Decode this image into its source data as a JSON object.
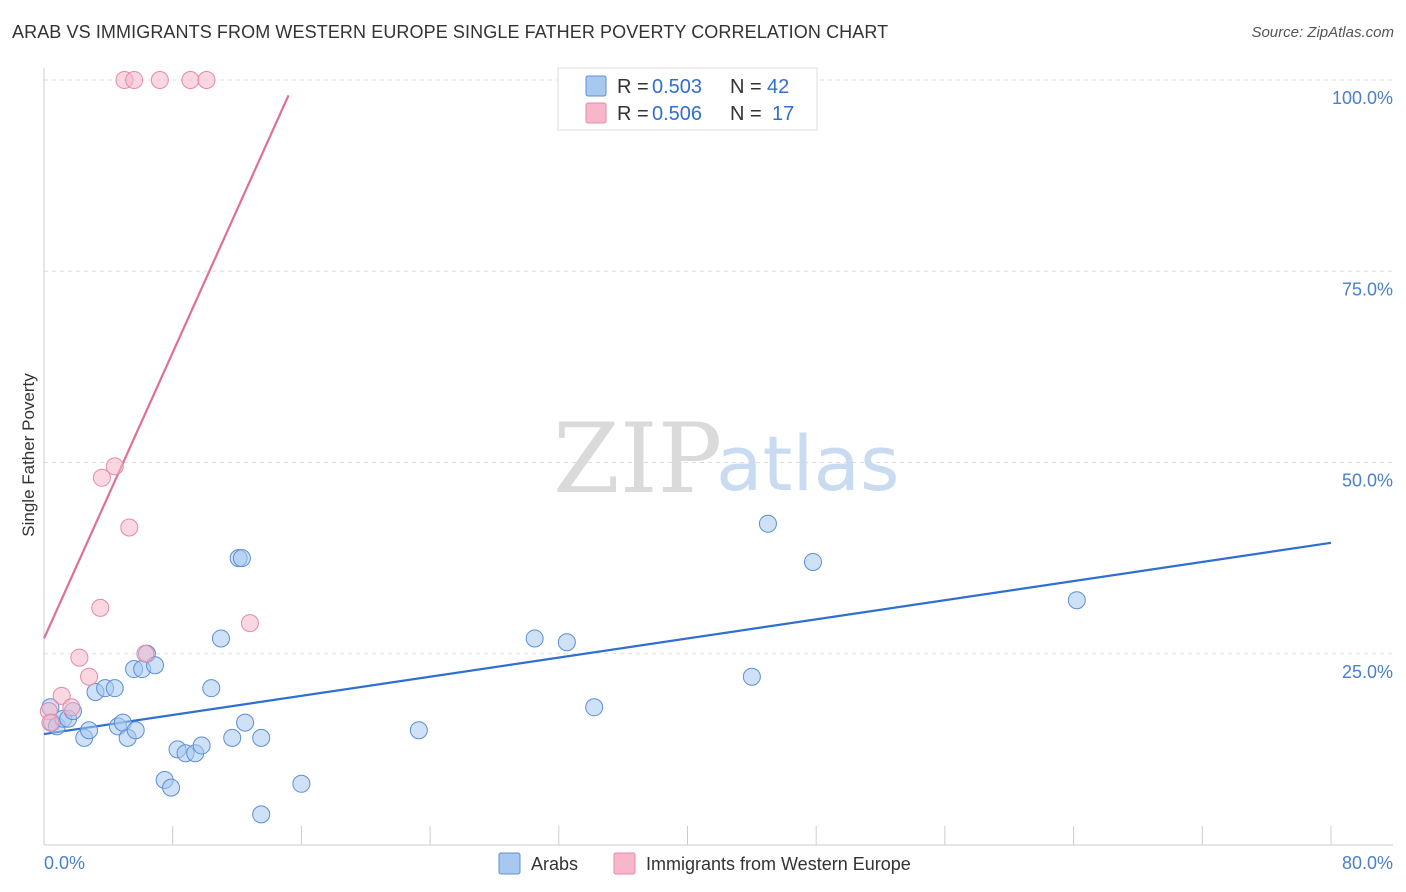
{
  "title": "ARAB VS IMMIGRANTS FROM WESTERN EUROPE SINGLE FATHER POVERTY CORRELATION CHART",
  "source": "Source: ZipAtlas.com",
  "watermark": {
    "zip": "ZIP",
    "atlas": "atlas"
  },
  "legend": {
    "rows": [
      {
        "r_label": "R = ",
        "r_value": "0.503",
        "n_label": "N = ",
        "n_value": "42",
        "color": "#a8c8f0",
        "stroke": "#5b8fd6"
      },
      {
        "r_label": "R = ",
        "r_value": "0.506",
        "n_label": "N = ",
        "n_value": "17",
        "color": "#f7b6c9",
        "stroke": "#e58aa6"
      }
    ]
  },
  "bottom_legend": [
    {
      "label": "Arabs",
      "color": "#a8c8f0",
      "stroke": "#5b8fd6"
    },
    {
      "label": "Immigrants from Western Europe",
      "color": "#f7b6c9",
      "stroke": "#e58aa6"
    }
  ],
  "chart_data": {
    "type": "scatter",
    "xlabel": "",
    "ylabel": "Single Father Poverty",
    "xlim": [
      0,
      80
    ],
    "ylim": [
      0,
      100
    ],
    "x_tick_labels": {
      "left": "0.0%",
      "right": "80.0%"
    },
    "y_tick_labels": [
      "100.0%",
      "75.0%",
      "50.0%",
      "25.0%"
    ],
    "y_ticks": [
      100,
      75,
      50,
      25
    ],
    "grid": true,
    "series": [
      {
        "name": "Arabs",
        "color": "#a8c8f0",
        "stroke": "#5b8fd6",
        "line_color": "#2f6fd0",
        "trend": {
          "x": [
            0,
            80
          ],
          "y": [
            14.5,
            39.5
          ]
        },
        "points": [
          [
            0.4,
            18
          ],
          [
            0.5,
            16
          ],
          [
            0.8,
            15.5
          ],
          [
            1.2,
            16.5
          ],
          [
            1.5,
            16.5
          ],
          [
            1.8,
            17.5
          ],
          [
            2.5,
            14
          ],
          [
            2.8,
            15
          ],
          [
            3.2,
            20
          ],
          [
            3.8,
            20.5
          ],
          [
            4.4,
            20.5
          ],
          [
            4.6,
            15.5
          ],
          [
            4.9,
            16
          ],
          [
            5.2,
            14
          ],
          [
            5.7,
            15
          ],
          [
            5.6,
            23
          ],
          [
            6.1,
            23
          ],
          [
            6.4,
            25
          ],
          [
            6.9,
            23.5
          ],
          [
            7.5,
            8.5
          ],
          [
            7.9,
            7.5
          ],
          [
            8.3,
            12.5
          ],
          [
            8.8,
            12
          ],
          [
            9.4,
            12
          ],
          [
            9.8,
            13
          ],
          [
            10.4,
            20.5
          ],
          [
            11,
            27
          ],
          [
            11.7,
            14
          ],
          [
            12.1,
            37.5
          ],
          [
            12.3,
            37.5
          ],
          [
            12.5,
            16
          ],
          [
            13.5,
            14
          ],
          [
            13.5,
            4
          ],
          [
            16,
            8
          ],
          [
            23.3,
            15
          ],
          [
            30.5,
            27
          ],
          [
            32.5,
            26.5
          ],
          [
            34.2,
            18
          ],
          [
            44,
            22
          ],
          [
            45,
            42
          ],
          [
            47.8,
            37
          ],
          [
            64.2,
            32
          ]
        ]
      },
      {
        "name": "Immigrants from Western Europe",
        "color": "#f7b6c9",
        "stroke": "#e58aa6",
        "line_color": "#e06f96",
        "trend": {
          "x": [
            0,
            15.2
          ],
          "y": [
            27,
            98
          ]
        },
        "points": [
          [
            0.3,
            17.5
          ],
          [
            0.4,
            16
          ],
          [
            1.1,
            19.5
          ],
          [
            1.7,
            18
          ],
          [
            2.2,
            24.5
          ],
          [
            2.8,
            22
          ],
          [
            3.5,
            31
          ],
          [
            3.6,
            48
          ],
          [
            4.4,
            49.5
          ],
          [
            5.3,
            41.5
          ],
          [
            6.3,
            25
          ],
          [
            12.8,
            29
          ],
          [
            5,
            100
          ],
          [
            5.6,
            100
          ],
          [
            7.2,
            100
          ],
          [
            9.1,
            100
          ],
          [
            10.1,
            100
          ]
        ]
      }
    ]
  }
}
